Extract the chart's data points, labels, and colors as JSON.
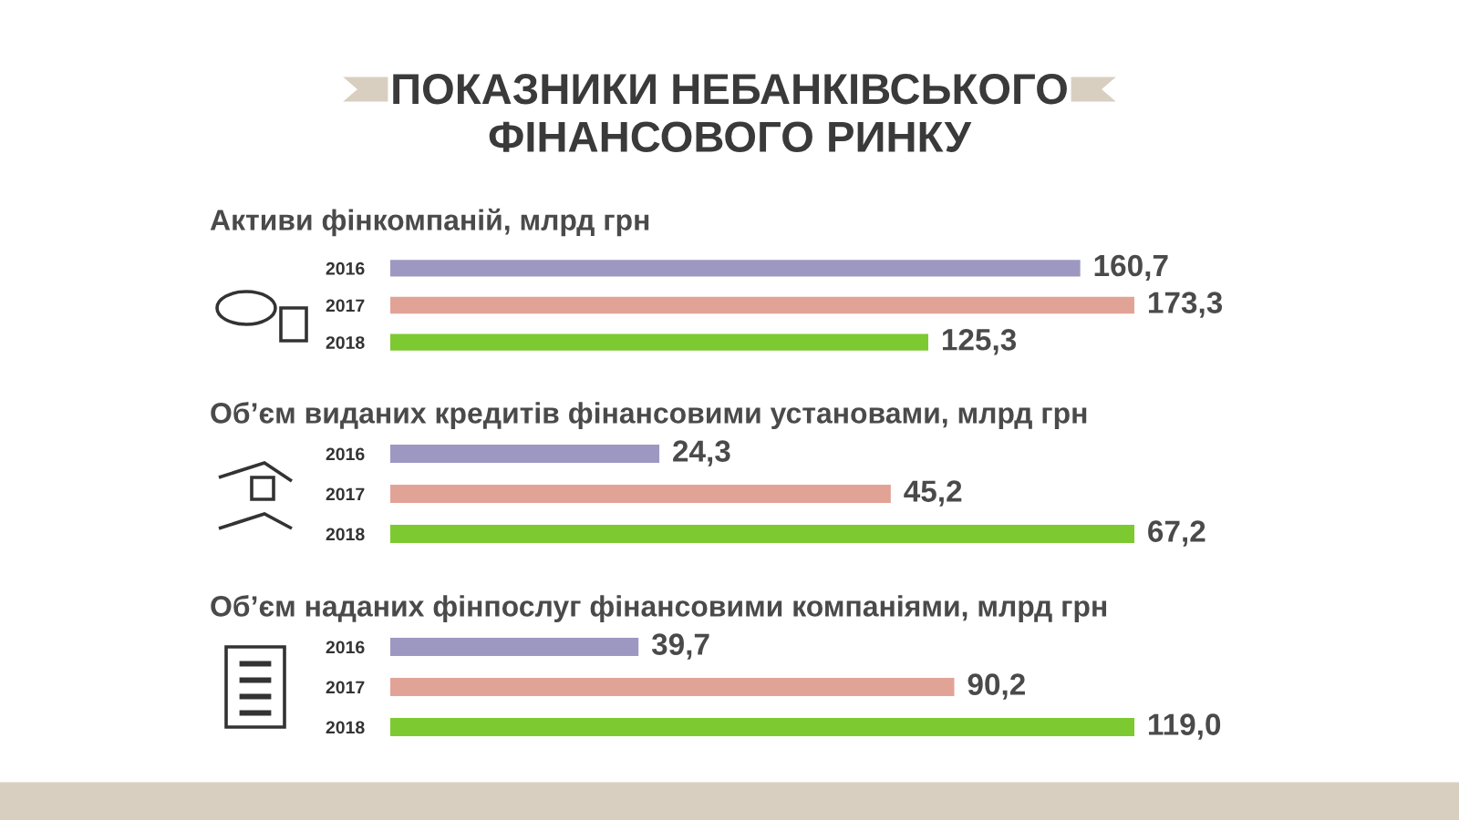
{
  "chart_data": [
    {
      "type": "bar",
      "orientation": "horizontal",
      "title": "ПОКАЗНИКИ НЕБАНКІВСЬКОГО\nФІНАНСОВОГО РИНКУ",
      "subtitle": "Активи фінкомпаній, млрд грн",
      "categories": [
        "2016",
        "2017",
        "2018"
      ],
      "values": [
        160.7,
        173.3,
        125.3
      ],
      "colors": [
        "#9d98c2",
        "#e2a397",
        "#7dc931"
      ],
      "value_labels": [
        "160,7",
        "173,3",
        "125,3"
      ],
      "tick_labels": "y",
      "grid": false,
      "legend": false
    },
    {
      "type": "bar",
      "orientation": "horizontal",
      "subtitle": "Об’єм виданих кредитів фінансовими установами, млрд грн",
      "categories": [
        "2016",
        "2017",
        "2018"
      ],
      "values": [
        24.3,
        45.2,
        67.2
      ],
      "colors": [
        "#9d98c2",
        "#e2a397",
        "#7dc931"
      ],
      "value_labels": [
        "24,3",
        "45,2",
        "67,2"
      ],
      "tick_labels": "y",
      "grid": false,
      "legend": false
    },
    {
      "type": "bar",
      "orientation": "horizontal",
      "subtitle": "Об’єм наданих фінпослуг фінансовими компаніями, млрд грн",
      "categories": [
        "2016",
        "2017",
        "2018"
      ],
      "values": [
        39.7,
        90.2,
        119.0
      ],
      "colors": [
        "#9d98c2",
        "#e2a397",
        "#7dc931"
      ],
      "value_labels": [
        "39,7",
        "90,2",
        "119,0"
      ],
      "tick_labels": "y",
      "grid": false,
      "legend": false
    }
  ]
}
